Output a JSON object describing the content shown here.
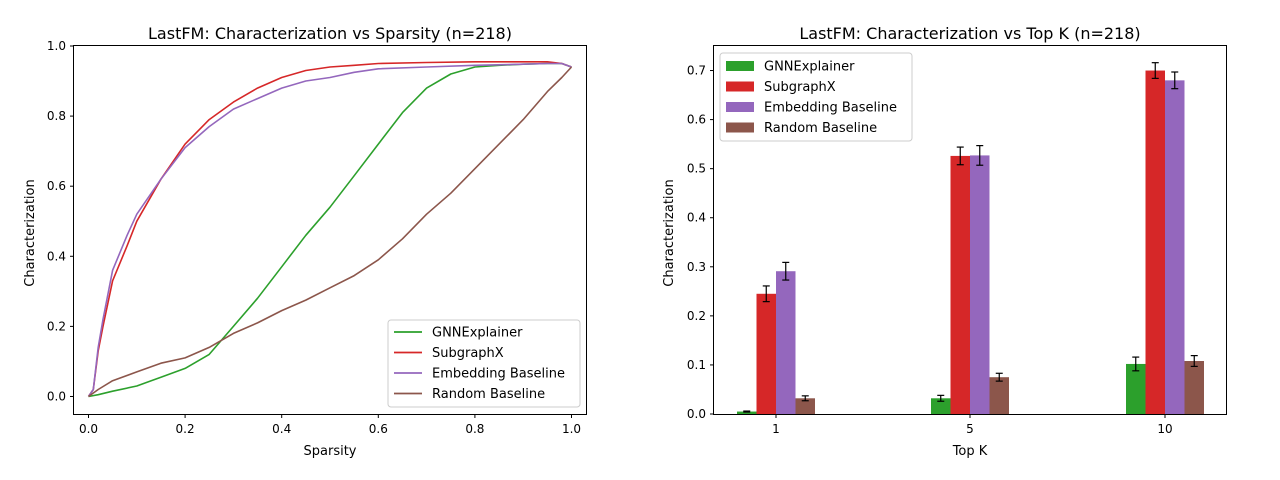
{
  "chart_data": [
    {
      "type": "line",
      "title": "LastFM: Characterization vs Sparsity (n=218)",
      "xlabel": "Sparsity",
      "ylabel": "Characterization",
      "xlim": [
        -0.03,
        1.03
      ],
      "ylim": [
        -0.05,
        1.0
      ],
      "xticks": [
        0.0,
        0.2,
        0.4,
        0.6,
        0.8,
        1.0
      ],
      "xtick_labels": [
        "0.0",
        "0.2",
        "0.4",
        "0.6",
        "0.8",
        "1.0"
      ],
      "yticks": [
        0.0,
        0.2,
        0.4,
        0.6,
        0.8,
        1.0
      ],
      "ytick_labels": [
        "0.0",
        "0.2",
        "0.4",
        "0.6",
        "0.8",
        "1.0"
      ],
      "grid": false,
      "legend_position": "lower-right",
      "series": [
        {
          "name": "GNNExplainer",
          "color": "#2ca02c",
          "x": [
            0.0,
            0.02,
            0.05,
            0.1,
            0.15,
            0.2,
            0.25,
            0.3,
            0.35,
            0.4,
            0.45,
            0.5,
            0.55,
            0.6,
            0.65,
            0.7,
            0.75,
            0.8,
            0.85,
            0.9,
            0.95,
            0.98,
            1.0
          ],
          "y": [
            0.0,
            0.005,
            0.015,
            0.03,
            0.055,
            0.08,
            0.12,
            0.2,
            0.28,
            0.37,
            0.46,
            0.54,
            0.63,
            0.72,
            0.81,
            0.88,
            0.92,
            0.94,
            0.945,
            0.948,
            0.95,
            0.95,
            0.94
          ]
        },
        {
          "name": "SubgraphX",
          "color": "#d62728",
          "x": [
            0.0,
            0.01,
            0.02,
            0.03,
            0.05,
            0.08,
            0.1,
            0.15,
            0.2,
            0.25,
            0.3,
            0.35,
            0.4,
            0.45,
            0.5,
            0.55,
            0.6,
            0.7,
            0.8,
            0.9,
            0.95,
            0.98,
            1.0
          ],
          "y": [
            0.0,
            0.02,
            0.13,
            0.2,
            0.33,
            0.43,
            0.5,
            0.62,
            0.72,
            0.79,
            0.84,
            0.88,
            0.91,
            0.93,
            0.94,
            0.945,
            0.95,
            0.953,
            0.955,
            0.955,
            0.955,
            0.95,
            0.94
          ]
        },
        {
          "name": "Embedding Baseline",
          "color": "#9467bd",
          "x": [
            0.0,
            0.01,
            0.02,
            0.03,
            0.05,
            0.08,
            0.1,
            0.15,
            0.2,
            0.25,
            0.3,
            0.35,
            0.4,
            0.45,
            0.5,
            0.55,
            0.6,
            0.7,
            0.8,
            0.9,
            0.95,
            0.98,
            1.0
          ],
          "y": [
            0.0,
            0.02,
            0.14,
            0.22,
            0.36,
            0.46,
            0.52,
            0.62,
            0.71,
            0.77,
            0.82,
            0.85,
            0.88,
            0.9,
            0.91,
            0.925,
            0.935,
            0.94,
            0.945,
            0.948,
            0.95,
            0.95,
            0.94
          ]
        },
        {
          "name": "Random Baseline",
          "color": "#8c564b",
          "x": [
            0.0,
            0.02,
            0.05,
            0.1,
            0.15,
            0.2,
            0.25,
            0.3,
            0.35,
            0.4,
            0.45,
            0.5,
            0.55,
            0.6,
            0.65,
            0.7,
            0.75,
            0.8,
            0.85,
            0.9,
            0.95,
            0.98,
            1.0
          ],
          "y": [
            0.0,
            0.02,
            0.045,
            0.07,
            0.095,
            0.11,
            0.14,
            0.18,
            0.21,
            0.245,
            0.275,
            0.31,
            0.345,
            0.39,
            0.45,
            0.52,
            0.58,
            0.65,
            0.72,
            0.79,
            0.87,
            0.91,
            0.94
          ]
        }
      ]
    },
    {
      "type": "bar",
      "title": "LastFM: Characterization vs Top K (n=218)",
      "xlabel": "Top K",
      "ylabel": "Characterization",
      "categories": [
        "1",
        "5",
        "10"
      ],
      "ylim": [
        0.0,
        0.75
      ],
      "yticks": [
        0.0,
        0.1,
        0.2,
        0.3,
        0.4,
        0.5,
        0.6,
        0.7
      ],
      "ytick_labels": [
        "0.0",
        "0.1",
        "0.2",
        "0.3",
        "0.4",
        "0.5",
        "0.6",
        "0.7"
      ],
      "grid": false,
      "legend_position": "upper-left",
      "series": [
        {
          "name": "GNNExplainer",
          "color": "#2ca02c",
          "values": [
            0.005,
            0.032,
            0.102
          ],
          "errors": [
            0.001,
            0.006,
            0.014
          ]
        },
        {
          "name": "SubgraphX",
          "color": "#d62728",
          "values": [
            0.245,
            0.526,
            0.7
          ],
          "errors": [
            0.016,
            0.018,
            0.016
          ]
        },
        {
          "name": "Embedding Baseline",
          "color": "#9467bd",
          "values": [
            0.291,
            0.527,
            0.68
          ],
          "errors": [
            0.018,
            0.02,
            0.017
          ]
        },
        {
          "name": "Random Baseline",
          "color": "#8c564b",
          "values": [
            0.032,
            0.075,
            0.108
          ],
          "errors": [
            0.005,
            0.008,
            0.011
          ]
        }
      ]
    }
  ]
}
